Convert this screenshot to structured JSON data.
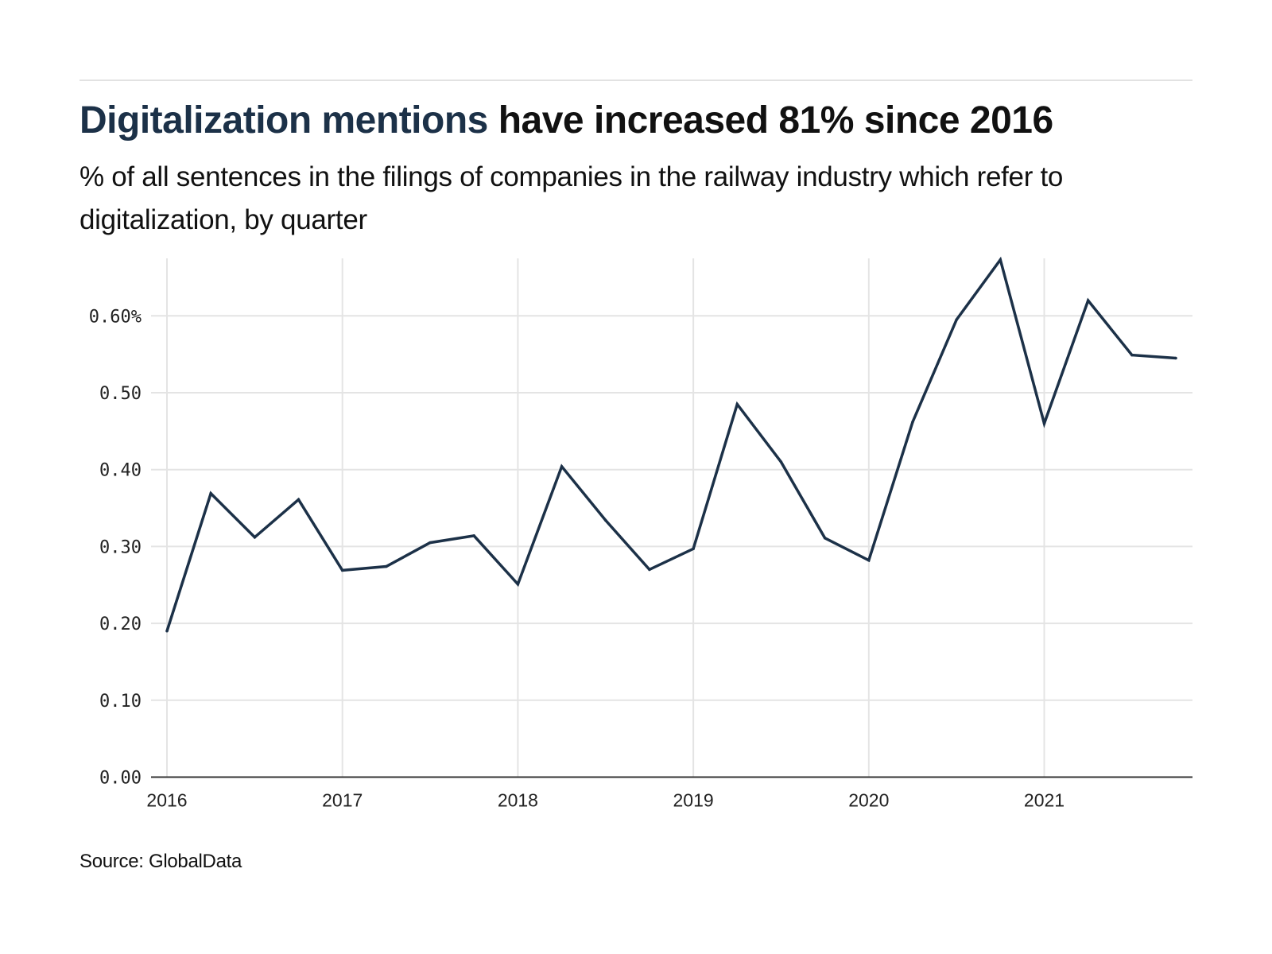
{
  "header": {
    "title_highlight": "Digitalization mentions",
    "title_rest": " have increased 81% since 2016",
    "subtitle": "% of all sentences in the filings of companies in the railway industry which refer to digitalization, by quarter"
  },
  "footer": {
    "source": "Source: GlobalData"
  },
  "colors": {
    "line": "#1c3148",
    "highlight": "#1c3148",
    "grid": "#e4e4e4",
    "axis": "#333333"
  },
  "chart_data": {
    "type": "line",
    "title": "Digitalization mentions have increased 81% since 2016",
    "subtitle": "% of all sentences in the filings of companies in the railway industry which refer to digitalization, by quarter",
    "xlabel": "",
    "ylabel": "",
    "x_ticks": [
      "2016",
      "2017",
      "2018",
      "2019",
      "2020",
      "2021"
    ],
    "y_ticks": [
      {
        "value": 0.0,
        "label": "0.00"
      },
      {
        "value": 0.1,
        "label": "0.10"
      },
      {
        "value": 0.2,
        "label": "0.20"
      },
      {
        "value": 0.3,
        "label": "0.30"
      },
      {
        "value": 0.4,
        "label": "0.40"
      },
      {
        "value": 0.5,
        "label": "0.50"
      },
      {
        "value": 0.6,
        "label": "0.60%"
      }
    ],
    "ylim": [
      0,
      0.68
    ],
    "xlim": [
      2016,
      2021.85
    ],
    "grid": true,
    "legend": "none",
    "series": [
      {
        "name": "Digitalization mentions (%)",
        "x": [
          "2016 Q1",
          "2016 Q2",
          "2016 Q3",
          "2016 Q4",
          "2017 Q1",
          "2017 Q2",
          "2017 Q3",
          "2017 Q4",
          "2018 Q1",
          "2018 Q2",
          "2018 Q3",
          "2018 Q4",
          "2019 Q1",
          "2019 Q2",
          "2019 Q3",
          "2019 Q4",
          "2020 Q1",
          "2020 Q2",
          "2020 Q3",
          "2020 Q4",
          "2021 Q1",
          "2021 Q2",
          "2021 Q3",
          "2021 Q4"
        ],
        "values": [
          0.19,
          0.369,
          0.312,
          0.361,
          0.269,
          0.274,
          0.305,
          0.314,
          0.251,
          0.404,
          0.334,
          0.27,
          0.297,
          0.485,
          0.41,
          0.311,
          0.282,
          0.462,
          0.595,
          0.673,
          0.46,
          0.62,
          0.549,
          0.545
        ]
      }
    ],
    "source": "Source: GlobalData"
  }
}
